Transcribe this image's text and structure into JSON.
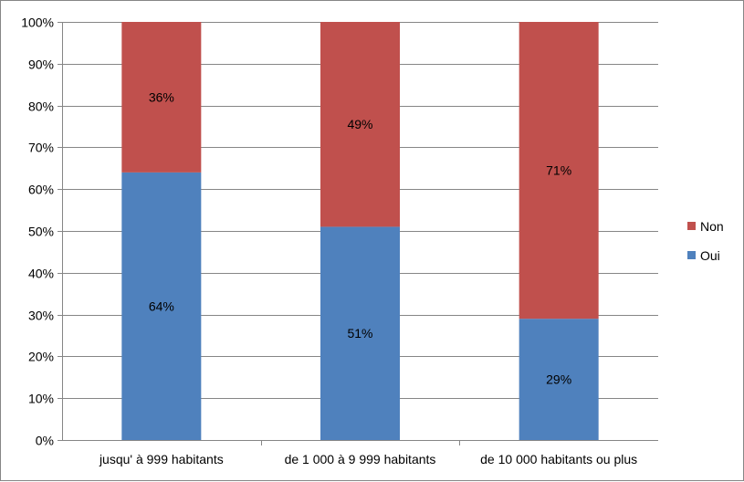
{
  "chart_data": {
    "type": "bar",
    "stacked": true,
    "percent_stacked": true,
    "title": "",
    "xlabel": "",
    "ylabel": "",
    "ylim": [
      0,
      100
    ],
    "yticks": [
      "0%",
      "10%",
      "20%",
      "30%",
      "40%",
      "50%",
      "60%",
      "70%",
      "80%",
      "90%",
      "100%"
    ],
    "categories": [
      "jusqu' à 999 habitants",
      "de 1 000 à 9 999 habitants",
      "de 10 000 habitants ou plus"
    ],
    "series": [
      {
        "name": "Oui",
        "values": [
          64,
          51,
          29
        ],
        "labels": [
          "64%",
          "51%",
          "29%"
        ],
        "color": "#4F81BD"
      },
      {
        "name": "Non",
        "values": [
          36,
          49,
          71
        ],
        "labels": [
          "36%",
          "49%",
          "71%"
        ],
        "color": "#C0504D"
      }
    ],
    "grid": true,
    "legend_position": "right",
    "legend_order": [
      "Non",
      "Oui"
    ]
  }
}
